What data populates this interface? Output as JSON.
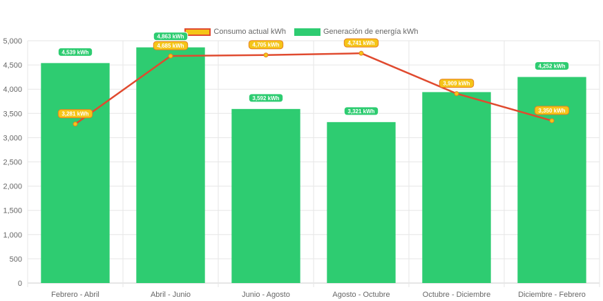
{
  "chart_data": {
    "type": "bar",
    "categories": [
      "Febrero - Abril",
      "Abril - Junio",
      "Junio - Agosto",
      "Agosto - Octubre",
      "Octubre - Diciembre",
      "Diciembre - Febrero"
    ],
    "series": [
      {
        "name": "Consumo actual kWh",
        "type": "line",
        "values": [
          3281,
          4685,
          4705,
          4741,
          3909,
          3350
        ],
        "labels": [
          "3,281 kWh",
          "4,685 kWh",
          "4,705 kWh",
          "4,741 kWh",
          "3,909 kWh",
          "3,350 kWh"
        ],
        "color": "#e04a2f",
        "label_color": "#f5c518"
      },
      {
        "name": "Generación de energía kWh",
        "type": "bar",
        "values": [
          4539,
          4863,
          3592,
          3321,
          3940,
          4252
        ],
        "labels": [
          "4,539 kWh",
          "4,863 kWh",
          "3,592 kWh",
          "3,321 kWh",
          "",
          "4,252 kWh"
        ],
        "color": "#2ecc71"
      }
    ],
    "ylim": [
      0,
      5000
    ],
    "yticks": [
      "0",
      "500",
      "1,000",
      "1,500",
      "2,000",
      "2,500",
      "3,000",
      "3,500",
      "4,000",
      "4,500",
      "5,000"
    ],
    "grid": true,
    "legend": "top-center"
  }
}
